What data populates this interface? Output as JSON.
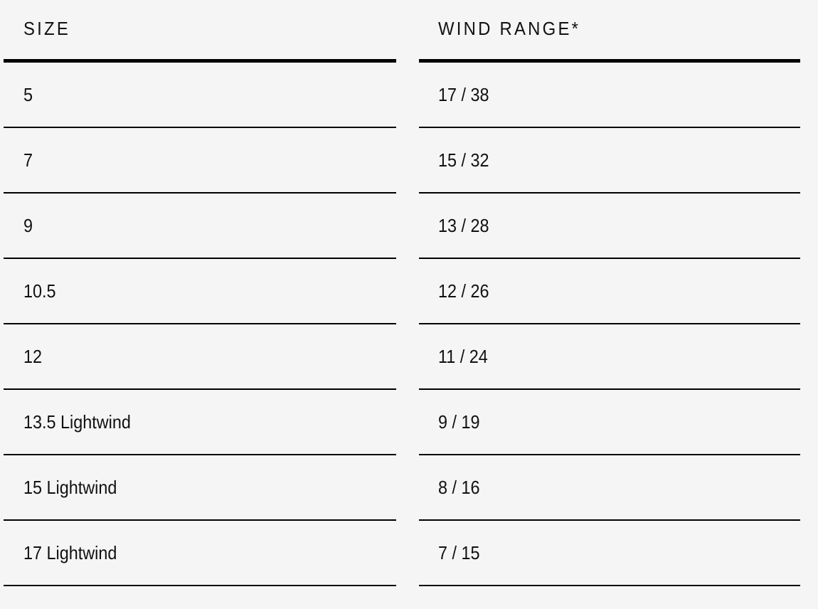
{
  "table": {
    "headers": {
      "size": "SIZE",
      "wind_range": "WIND RANGE*"
    },
    "rows": [
      {
        "size": "5",
        "wind_range": "17 / 38"
      },
      {
        "size": "7",
        "wind_range": "15 / 32"
      },
      {
        "size": "9",
        "wind_range": "13 / 28"
      },
      {
        "size": "10.5",
        "wind_range": "12 / 26"
      },
      {
        "size": "12",
        "wind_range": "11 / 24"
      },
      {
        "size": "13.5 Lightwind",
        "wind_range": "9 / 19"
      },
      {
        "size": "15 Lightwind",
        "wind_range": "8 / 16"
      },
      {
        "size": "17 Lightwind",
        "wind_range": "7 / 15"
      }
    ]
  }
}
